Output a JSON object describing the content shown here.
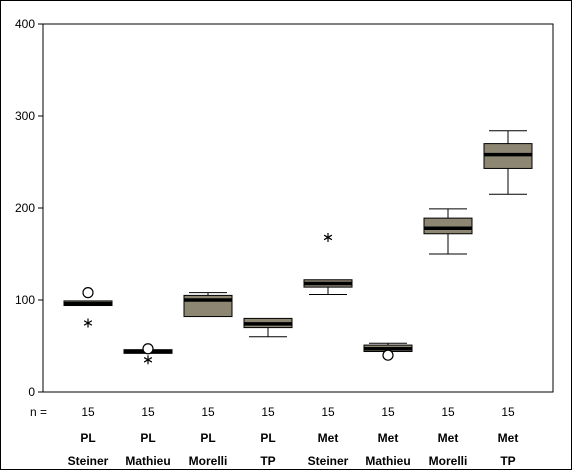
{
  "chart_data": {
    "type": "boxplot",
    "ylim": [
      0,
      400
    ],
    "yticks": [
      "0",
      "100",
      "200",
      "300",
      "400"
    ],
    "n_prefix": "n =",
    "box_color": "#8c8672",
    "groups": [
      {
        "n": "15",
        "line1": "PL",
        "line2": "Steiner",
        "whisker_low": 94,
        "q1": 94,
        "median": 96,
        "q3": 99,
        "whisker_high": 99,
        "circles": [
          108
        ],
        "stars": [
          75
        ]
      },
      {
        "n": "15",
        "line1": "PL",
        "line2": "Mathieu",
        "whisker_low": 42,
        "q1": 42,
        "median": 44,
        "q3": 46,
        "whisker_high": 46,
        "circles": [
          47
        ],
        "stars": [
          35
        ]
      },
      {
        "n": "15",
        "line1": "PL",
        "line2": "Morelli",
        "whisker_low": 82,
        "q1": 82,
        "median": 100,
        "q3": 105,
        "whisker_high": 108,
        "circles": [],
        "stars": []
      },
      {
        "n": "15",
        "line1": "PL",
        "line2": "TP",
        "whisker_low": 60,
        "q1": 70,
        "median": 74,
        "q3": 80,
        "whisker_high": 80,
        "circles": [],
        "stars": []
      },
      {
        "n": "15",
        "line1": "Met",
        "line2": "Steiner",
        "whisker_low": 106,
        "q1": 114,
        "median": 118,
        "q3": 122,
        "whisker_high": 122,
        "circles": [],
        "stars": [
          168
        ]
      },
      {
        "n": "15",
        "line1": "Met",
        "line2": "Mathieu",
        "whisker_low": 44,
        "q1": 44,
        "median": 47,
        "q3": 51,
        "whisker_high": 53,
        "circles": [
          40
        ],
        "stars": []
      },
      {
        "n": "15",
        "line1": "Met",
        "line2": "Morelli",
        "whisker_low": 150,
        "q1": 172,
        "median": 178,
        "q3": 189,
        "whisker_high": 199,
        "circles": [],
        "stars": []
      },
      {
        "n": "15",
        "line1": "Met",
        "line2": "TP",
        "whisker_low": 215,
        "q1": 243,
        "median": 258,
        "q3": 270,
        "whisker_high": 284,
        "circles": [],
        "stars": []
      }
    ]
  }
}
